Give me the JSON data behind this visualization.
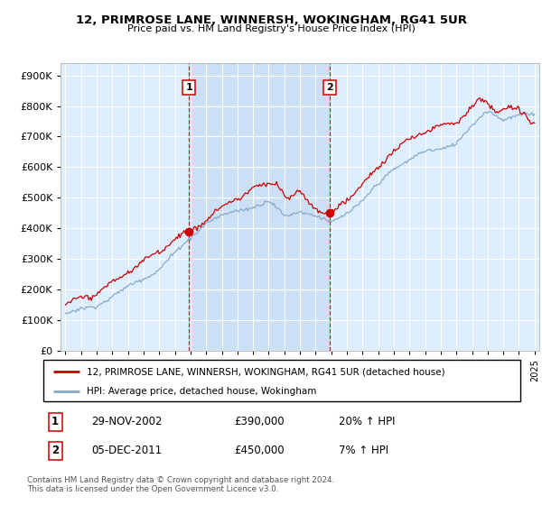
{
  "title1": "12, PRIMROSE LANE, WINNERSH, WOKINGHAM, RG41 5UR",
  "title2": "Price paid vs. HM Land Registry's House Price Index (HPI)",
  "ytick_vals": [
    0,
    100000,
    200000,
    300000,
    400000,
    500000,
    600000,
    700000,
    800000,
    900000
  ],
  "ylim": [
    0,
    940000
  ],
  "xlim_start": 1994.7,
  "xlim_end": 2025.3,
  "plot_bg": "#ddeeff",
  "shaded_bg": "#cce0f5",
  "red_line_color": "#cc0000",
  "blue_line_color": "#88aacc",
  "vline_color": "#cc0000",
  "marker1_x": 2002.91,
  "marker1_y": 390000,
  "marker2_x": 2011.92,
  "marker2_y": 450000,
  "legend_label1": "12, PRIMROSE LANE, WINNERSH, WOKINGHAM, RG41 5UR (detached house)",
  "legend_label2": "HPI: Average price, detached house, Wokingham",
  "annotation1_date": "29-NOV-2002",
  "annotation1_price": "£390,000",
  "annotation1_hpi": "20% ↑ HPI",
  "annotation2_date": "05-DEC-2011",
  "annotation2_price": "£450,000",
  "annotation2_hpi": "7% ↑ HPI",
  "footer": "Contains HM Land Registry data © Crown copyright and database right 2024.\nThis data is licensed under the Open Government Licence v3.0.",
  "xticks": [
    1995,
    1996,
    1997,
    1998,
    1999,
    2000,
    2001,
    2002,
    2003,
    2004,
    2005,
    2006,
    2007,
    2008,
    2009,
    2010,
    2011,
    2012,
    2013,
    2014,
    2015,
    2016,
    2017,
    2018,
    2019,
    2020,
    2021,
    2022,
    2023,
    2024,
    2025
  ]
}
